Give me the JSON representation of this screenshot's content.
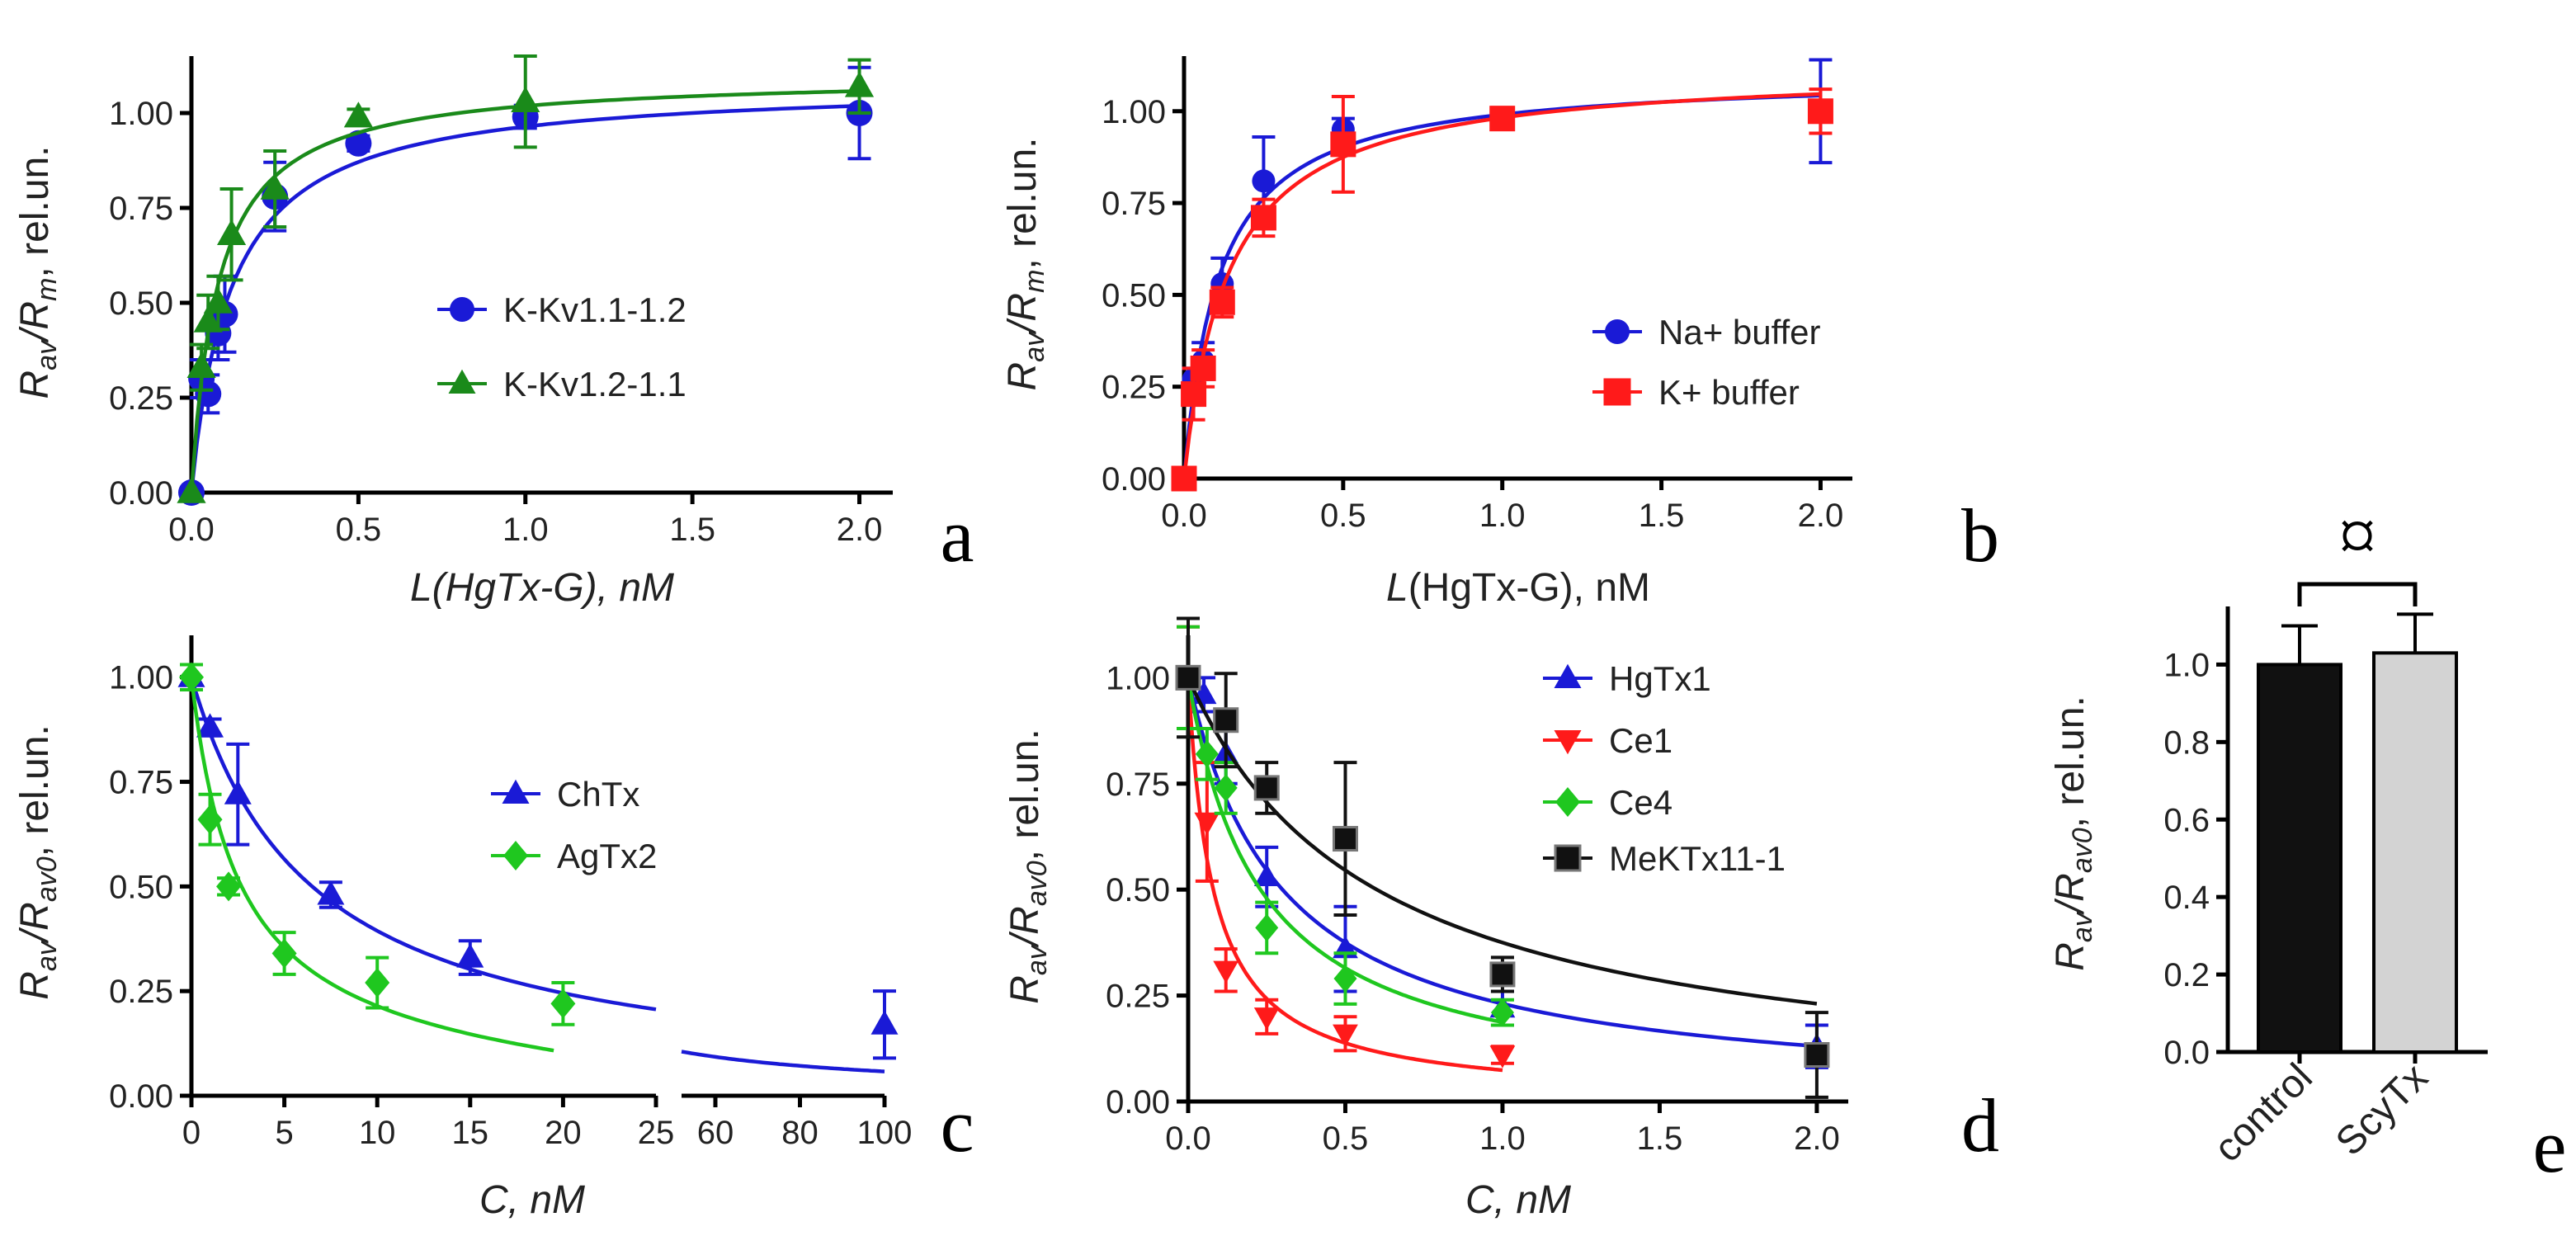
{
  "colors": {
    "blue": "#1a1ad6",
    "green": "#1a8a1a",
    "bgreen": "#1fc71f",
    "red": "#ff1a1a",
    "black": "#111111",
    "gray": "#d3d3d3",
    "navy": "#1a1a9e"
  },
  "chart_data": [
    {
      "panel": "a",
      "type": "scatter",
      "xlabel": "L(HgTx-G), nM",
      "ylabel": "Rav/Rm, rel.un.",
      "xlim": [
        0,
        2.1
      ],
      "ylim": [
        0,
        1.15
      ],
      "xticks": [
        "0.0",
        "0.5",
        "1.0",
        "1.5",
        "2.0"
      ],
      "yticks": [
        "0.00",
        "0.25",
        "0.50",
        "0.75",
        "1.00"
      ],
      "series": [
        {
          "name": "K-Kv1.1-1.2",
          "marker": "circle",
          "color": "#1a1ad6",
          "x": [
            0,
            0.03,
            0.05,
            0.08,
            0.1,
            0.25,
            0.5,
            1.0,
            2.0
          ],
          "y": [
            0,
            0.3,
            0.26,
            0.42,
            0.47,
            0.78,
            0.92,
            0.99,
            1.0
          ],
          "err": [
            0,
            0.05,
            0.05,
            0.07,
            0.1,
            0.09,
            0.02,
            0.03,
            0.12
          ],
          "fit": {
            "max": 1.08,
            "k": 0.12
          }
        },
        {
          "name": "K-Kv1.2-1.1",
          "marker": "triangle",
          "color": "#1a8a1a",
          "x": [
            0,
            0.03,
            0.05,
            0.08,
            0.12,
            0.25,
            0.5,
            1.0,
            2.0
          ],
          "y": [
            0,
            0.33,
            0.45,
            0.5,
            0.68,
            0.8,
            0.99,
            1.03,
            1.07
          ],
          "err": [
            0,
            0.06,
            0.07,
            0.07,
            0.12,
            0.1,
            0.02,
            0.12,
            0.07
          ],
          "fit": {
            "max": 1.1,
            "k": 0.08
          }
        }
      ]
    },
    {
      "panel": "b",
      "type": "scatter",
      "xlabel": "L(HgTx-G), nM",
      "ylabel": "Rav/Rm, rel.un.",
      "xlim": [
        0,
        2.1
      ],
      "ylim": [
        0,
        1.15
      ],
      "xticks": [
        "0.0",
        "0.5",
        "1.0",
        "1.5",
        "2.0"
      ],
      "yticks": [
        "0.00",
        "0.25",
        "0.50",
        "0.75",
        "1.00"
      ],
      "series": [
        {
          "name": "Na+ buffer",
          "marker": "circle",
          "color": "#1a1ad6",
          "x": [
            0,
            0.03,
            0.06,
            0.12,
            0.25,
            0.5,
            1.0,
            2.0
          ],
          "y": [
            0,
            0.27,
            0.32,
            0.53,
            0.81,
            0.95,
            0.98,
            1.0
          ],
          "err": [
            0,
            0.03,
            0.05,
            0.07,
            0.12,
            0.03,
            0.02,
            0.14
          ],
          "fit": {
            "max": 1.1,
            "k": 0.11
          }
        },
        {
          "name": "K+ buffer",
          "marker": "square",
          "color": "#ff1a1a",
          "x": [
            0,
            0.03,
            0.06,
            0.12,
            0.25,
            0.5,
            1.0,
            2.0
          ],
          "y": [
            0,
            0.23,
            0.3,
            0.48,
            0.71,
            0.91,
            0.98,
            1.0
          ],
          "err": [
            0,
            0.07,
            0.05,
            0.04,
            0.05,
            0.13,
            0.03,
            0.06
          ],
          "fit": {
            "max": 1.12,
            "k": 0.14
          }
        }
      ]
    },
    {
      "panel": "c",
      "type": "scatter",
      "xlabel": "C, nM",
      "ylabel": "Rav/Rav0, rel.un.",
      "ylim": [
        0,
        1.1
      ],
      "x_segments": [
        {
          "range": [
            0,
            25
          ],
          "ticks": [
            "0",
            "5",
            "10",
            "15",
            "20",
            "25"
          ]
        },
        {
          "range": [
            52,
            100
          ],
          "ticks": [
            "60",
            "80",
            "100"
          ]
        }
      ],
      "yticks": [
        "0.00",
        "0.25",
        "0.50",
        "0.75",
        "1.00"
      ],
      "series": [
        {
          "name": "ChTx",
          "marker": "triangle",
          "color": "#1a1ad6",
          "x": [
            0,
            1,
            2.5,
            7.5,
            15,
            100
          ],
          "y": [
            1.0,
            0.88,
            0.72,
            0.48,
            0.33,
            0.17
          ],
          "err": [
            0,
            0.02,
            0.12,
            0.03,
            0.04,
            0.08
          ],
          "fit": {
            "ic50": 6.5
          }
        },
        {
          "name": "AgTx2",
          "marker": "diamond",
          "color": "#1fc71f",
          "x": [
            0,
            1,
            2,
            5,
            10,
            20
          ],
          "y": [
            1.0,
            0.66,
            0.5,
            0.34,
            0.27,
            0.22
          ],
          "err": [
            0.03,
            0.06,
            0.02,
            0.05,
            0.06,
            0.05
          ],
          "fit": {
            "ic50": 2.5
          }
        }
      ]
    },
    {
      "panel": "d",
      "type": "scatter",
      "xlabel": "C, nM",
      "ylabel": "Rav/Rav0, rel.un.",
      "xlim": [
        0,
        2.1
      ],
      "ylim": [
        0,
        1.1
      ],
      "xticks": [
        "0.0",
        "0.5",
        "1.0",
        "1.5",
        "2.0"
      ],
      "yticks": [
        "0.00",
        "0.25",
        "0.50",
        "0.75",
        "1.00"
      ],
      "series": [
        {
          "name": "HgTx1",
          "marker": "triangle",
          "color": "#1a1ad6",
          "x": [
            0,
            0.05,
            0.12,
            0.25,
            0.5,
            1.0,
            2.0
          ],
          "y": [
            1.0,
            0.96,
            0.82,
            0.53,
            0.36,
            0.22,
            0.13
          ],
          "err": [
            0,
            0.04,
            0.07,
            0.07,
            0.1,
            0.04,
            0.05
          ],
          "fit": {
            "ic50": 0.3
          }
        },
        {
          "name": "Ce1",
          "marker": "triangle-down",
          "color": "#ff1a1a",
          "x": [
            0,
            0.06,
            0.12,
            0.25,
            0.5,
            1.0
          ],
          "y": [
            1.0,
            0.66,
            0.31,
            0.2,
            0.16,
            0.11
          ],
          "err": [
            0.12,
            0.14,
            0.05,
            0.04,
            0.04,
            0.02
          ],
          "fit": {
            "ic50": 0.08
          }
        },
        {
          "name": "Ce4",
          "marker": "diamond",
          "color": "#1fc71f",
          "x": [
            0,
            0.06,
            0.12,
            0.25,
            0.5,
            1.0
          ],
          "y": [
            1.0,
            0.82,
            0.74,
            0.41,
            0.29,
            0.21
          ],
          "err": [
            0.12,
            0.06,
            0.06,
            0.06,
            0.06,
            0.03
          ],
          "fit": {
            "ic50": 0.23
          }
        },
        {
          "name": "MeKTx11-1",
          "marker": "square",
          "color": "#111111",
          "x": [
            0,
            0.12,
            0.25,
            0.5,
            1.0,
            2.0
          ],
          "y": [
            1.0,
            0.9,
            0.74,
            0.62,
            0.3,
            0.11
          ],
          "err": [
            0.14,
            0.11,
            0.06,
            0.18,
            0.04,
            0.1
          ],
          "fit": {
            "ic50": 0.6
          }
        }
      ]
    },
    {
      "panel": "e",
      "type": "bar",
      "categories": [
        "control",
        "ScyTx"
      ],
      "values": [
        1.0,
        1.03
      ],
      "errors": [
        0.1,
        0.1
      ],
      "colors": [
        "#111111",
        "#d3d3d3"
      ],
      "ylabel": "Rav/Rav0, rel.un.",
      "ylim": [
        0,
        1.15
      ],
      "yticks": [
        "0.0",
        "0.2",
        "0.4",
        "0.6",
        "0.8",
        "1.0"
      ],
      "annotation": "¤"
    }
  ]
}
